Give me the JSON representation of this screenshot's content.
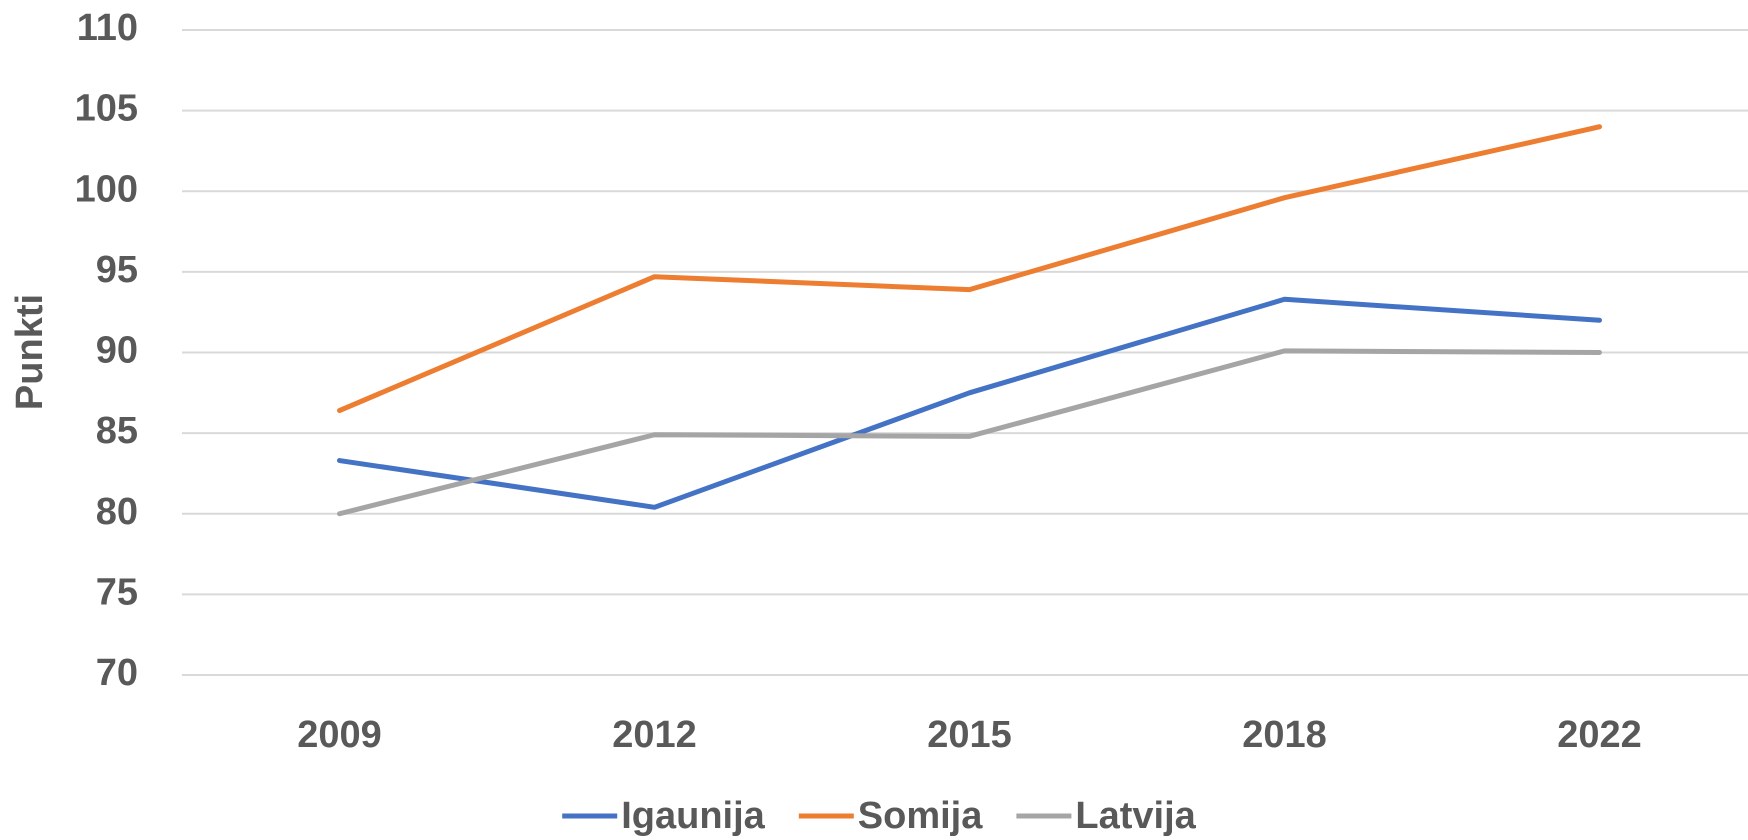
{
  "chart_data": {
    "type": "line",
    "y_label": "Punkti",
    "categories": [
      "2009",
      "2012",
      "2015",
      "2018",
      "2022"
    ],
    "series": [
      {
        "name": "Igaunija",
        "color": "#4472c4",
        "values": [
          83.3,
          80.4,
          87.5,
          93.3,
          92.0
        ]
      },
      {
        "name": "Somija",
        "color": "#ed7d31",
        "values": [
          86.4,
          94.7,
          93.9,
          99.6,
          104.0
        ]
      },
      {
        "name": "Latvija",
        "color": "#a5a5a5",
        "values": [
          80.0,
          84.9,
          84.8,
          90.1,
          90.0
        ]
      }
    ],
    "ylim": [
      70,
      110
    ],
    "yticks": [
      70,
      75,
      80,
      85,
      90,
      95,
      100,
      105,
      110
    ],
    "grid": true,
    "legend": "bottom"
  }
}
